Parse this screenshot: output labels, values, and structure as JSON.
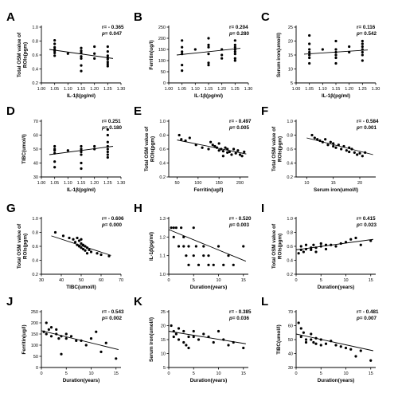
{
  "chart_data": [
    {
      "panel": "A",
      "type": "scatter",
      "xlabel": "IL-1β(pg/ml)",
      "ylabel": "Total OSM value of ROIs(pgm)",
      "xlim": [
        1.0,
        1.3
      ],
      "ylim": [
        0.2,
        1.0
      ],
      "xticks": [
        "1.00",
        "1.05",
        "1.10",
        "1.15",
        "1.20",
        "1.25",
        "1.30"
      ],
      "yticks": [
        "0.2",
        "0.4",
        "0.6",
        "0.8",
        "1.0"
      ],
      "r_text": "r= - 0.365",
      "p_text": "0.047",
      "x": [
        1.05,
        1.05,
        1.05,
        1.05,
        1.05,
        1.05,
        1.05,
        1.1,
        1.15,
        1.15,
        1.15,
        1.15,
        1.15,
        1.15,
        1.15,
        1.2,
        1.2,
        1.2,
        1.25,
        1.25,
        1.25,
        1.25,
        1.25,
        1.25,
        1.25,
        1.25
      ],
      "y": [
        0.81,
        0.76,
        0.71,
        0.68,
        0.66,
        0.63,
        0.59,
        0.62,
        0.7,
        0.66,
        0.63,
        0.58,
        0.55,
        0.45,
        0.37,
        0.72,
        0.62,
        0.55,
        0.72,
        0.65,
        0.59,
        0.56,
        0.54,
        0.5,
        0.47,
        0.44
      ],
      "fit": [
        [
          1.03,
          0.68
        ],
        [
          1.27,
          0.55
        ]
      ]
    },
    {
      "panel": "B",
      "type": "scatter",
      "xlabel": "IL-1β(pg/ml)",
      "ylabel": "Ferritin(ug/l)",
      "xlim": [
        1.0,
        1.3
      ],
      "ylim": [
        0,
        250
      ],
      "xticks": [
        "1.00",
        "1.05",
        "1.10",
        "1.15",
        "1.20",
        "1.25",
        "1.30"
      ],
      "yticks": [
        "0",
        "50",
        "100",
        "150",
        "200",
        "250"
      ],
      "r_text": "r= 0.204",
      "p_text": "0.280",
      "x": [
        1.05,
        1.05,
        1.05,
        1.05,
        1.05,
        1.05,
        1.1,
        1.15,
        1.15,
        1.15,
        1.15,
        1.15,
        1.15,
        1.2,
        1.2,
        1.2,
        1.25,
        1.25,
        1.25,
        1.25,
        1.25,
        1.25,
        1.25,
        1.25
      ],
      "y": [
        190,
        160,
        140,
        130,
        80,
        55,
        150,
        200,
        170,
        160,
        130,
        90,
        80,
        150,
        125,
        110,
        190,
        170,
        160,
        150,
        140,
        130,
        110,
        100
      ],
      "fit": [
        [
          1.03,
          125
        ],
        [
          1.27,
          155
        ]
      ]
    },
    {
      "panel": "C",
      "type": "scatter",
      "xlabel": "IL-1β(pg/ml)",
      "ylabel": "Serum iron(umol/l)",
      "xlim": [
        1.0,
        1.3
      ],
      "ylim": [
        5,
        25
      ],
      "xticks": [
        "1.00",
        "1.05",
        "1.10",
        "1.15",
        "1.20",
        "1.25",
        "1.30"
      ],
      "yticks": [
        "5",
        "10",
        "15",
        "20",
        "25"
      ],
      "r_text": "r= 0.116",
      "p_text": "0.542",
      "x": [
        1.05,
        1.05,
        1.05,
        1.05,
        1.05,
        1.05,
        1.05,
        1.1,
        1.15,
        1.15,
        1.15,
        1.15,
        1.15,
        1.15,
        1.2,
        1.2,
        1.25,
        1.25,
        1.25,
        1.25,
        1.25,
        1.25,
        1.25
      ],
      "y": [
        22,
        19,
        17,
        16,
        15,
        14,
        12,
        17,
        20,
        17,
        16,
        15,
        14,
        12,
        18,
        16,
        20,
        19,
        18,
        17,
        16,
        15,
        13
      ],
      "fit": [
        [
          1.03,
          15.3
        ],
        [
          1.27,
          16.8
        ]
      ]
    },
    {
      "panel": "D",
      "type": "scatter",
      "xlabel": "IL-1β(pg/ml)",
      "ylabel": "TIBC(umol/l)",
      "xlim": [
        1.0,
        1.3
      ],
      "ylim": [
        30,
        70
      ],
      "xticks": [
        "1.00",
        "1.05",
        "1.10",
        "1.15",
        "1.20",
        "1.25",
        "1.30"
      ],
      "yticks": [
        "30",
        "40",
        "50",
        "60",
        "70"
      ],
      "r_text": "r= 0.251",
      "p_text": "0.180",
      "x": [
        1.05,
        1.05,
        1.05,
        1.05,
        1.05,
        1.05,
        1.1,
        1.15,
        1.15,
        1.15,
        1.15,
        1.15,
        1.15,
        1.2,
        1.2,
        1.25,
        1.25,
        1.25,
        1.25,
        1.25,
        1.25,
        1.25,
        1.25
      ],
      "y": [
        52,
        50,
        49,
        47,
        41,
        37,
        49,
        52,
        50,
        48,
        46,
        40,
        36,
        52,
        50,
        64,
        60,
        55,
        52,
        50,
        48,
        46,
        44
      ],
      "fit": [
        [
          1.03,
          46
        ],
        [
          1.27,
          52
        ]
      ]
    },
    {
      "panel": "E",
      "type": "scatter",
      "xlabel": "Ferritin(ug/l)",
      "ylabel": "Total OSM value of ROIs(pgm)",
      "xlim": [
        30,
        220
      ],
      "ylim": [
        0.2,
        1.0
      ],
      "xticks": [
        "50",
        "100",
        "150",
        "200"
      ],
      "yticks": [
        "0.2",
        "0.4",
        "0.6",
        "0.8",
        "1.0"
      ],
      "r_text": "r= - 0.497",
      "p_text": "0.005",
      "x": [
        55,
        60,
        70,
        80,
        95,
        110,
        125,
        130,
        135,
        140,
        145,
        150,
        150,
        155,
        160,
        160,
        165,
        170,
        170,
        175,
        180,
        185,
        190,
        195,
        200,
        205,
        210
      ],
      "y": [
        0.8,
        0.74,
        0.72,
        0.76,
        0.66,
        0.62,
        0.6,
        0.7,
        0.66,
        0.64,
        0.62,
        0.68,
        0.58,
        0.6,
        0.57,
        0.5,
        0.62,
        0.55,
        0.6,
        0.56,
        0.52,
        0.6,
        0.54,
        0.58,
        0.52,
        0.5,
        0.56
      ],
      "fit": [
        [
          50,
          0.73
        ],
        [
          215,
          0.53
        ]
      ]
    },
    {
      "panel": "F",
      "type": "scatter",
      "xlabel": "Serum iron(umol/l)",
      "ylabel": "Total OSM value of ROIs(pgm)",
      "xlim": [
        8,
        23
      ],
      "ylim": [
        0.2,
        1.0
      ],
      "xticks": [
        "10",
        "15",
        "20"
      ],
      "yticks": [
        "0.2",
        "0.4",
        "0.6",
        "0.8",
        "1.0"
      ],
      "r_text": "r= - 0.584",
      "p_text": "0.001",
      "x": [
        11,
        11.5,
        12,
        12.5,
        13,
        13.5,
        14,
        14.5,
        15,
        15,
        15.5,
        16,
        16.5,
        17,
        17.5,
        18,
        18,
        18.5,
        19,
        19.5,
        20,
        20.5,
        21
      ],
      "y": [
        0.8,
        0.76,
        0.74,
        0.72,
        0.7,
        0.74,
        0.66,
        0.7,
        0.64,
        0.68,
        0.62,
        0.66,
        0.6,
        0.64,
        0.58,
        0.56,
        0.62,
        0.6,
        0.55,
        0.52,
        0.54,
        0.5,
        0.55
      ],
      "fit": [
        [
          10,
          0.76
        ],
        [
          22.5,
          0.52
        ]
      ]
    },
    {
      "panel": "G",
      "type": "scatter",
      "xlabel": "TIBC(umol/l)",
      "ylabel": "Total OSM value of ROIs(pgm)",
      "xlim": [
        30,
        70
      ],
      "ylim": [
        0.2,
        1.0
      ],
      "xticks": [
        "30",
        "40",
        "50",
        "60",
        "70"
      ],
      "yticks": [
        "0.2",
        "0.4",
        "0.6",
        "0.8",
        "1.0"
      ],
      "r_text": "r= - 0.606",
      "p_text": "0.000",
      "x": [
        37,
        41,
        44,
        46,
        47,
        48,
        48,
        49,
        49,
        50,
        50,
        50,
        51,
        51,
        52,
        52,
        53,
        53,
        54,
        55,
        58,
        60,
        64
      ],
      "y": [
        0.8,
        0.75,
        0.72,
        0.7,
        0.66,
        0.62,
        0.72,
        0.6,
        0.68,
        0.58,
        0.64,
        0.7,
        0.56,
        0.62,
        0.54,
        0.6,
        0.5,
        0.58,
        0.55,
        0.52,
        0.5,
        0.48,
        0.46
      ],
      "fit": [
        [
          35,
          0.75
        ],
        [
          65,
          0.47
        ]
      ]
    },
    {
      "panel": "H",
      "type": "scatter",
      "xlabel": "Duration(years)",
      "ylabel": "IL-1β(pg/ml)",
      "xlim": [
        0,
        16
      ],
      "ylim": [
        1.0,
        1.3
      ],
      "xticks": [
        "0",
        "5",
        "10",
        "15"
      ],
      "yticks": [
        "1.0",
        "1.1",
        "1.2",
        "1.3"
      ],
      "r_text": "r= - 0.520",
      "p_text": "0.003",
      "x": [
        0.5,
        1,
        1,
        1.5,
        2,
        2.5,
        3,
        3,
        3.5,
        4,
        4,
        5,
        5,
        5.5,
        6,
        7,
        7,
        8,
        8,
        9,
        10,
        11,
        12,
        13,
        15
      ],
      "y": [
        1.25,
        1.25,
        1.2,
        1.25,
        1.15,
        1.25,
        1.15,
        1.2,
        1.1,
        1.05,
        1.15,
        1.25,
        1.1,
        1.15,
        1.05,
        1.15,
        1.1,
        1.05,
        1.1,
        1.05,
        1.15,
        1.05,
        1.1,
        1.05,
        1.15
      ],
      "fit": [
        [
          0,
          1.24
        ],
        [
          15.5,
          1.07
        ]
      ]
    },
    {
      "panel": "I",
      "type": "scatter",
      "xlabel": "Duration(years)",
      "ylabel": "Total OSM value of ROIs(pgm)",
      "xlim": [
        0,
        16
      ],
      "ylim": [
        0.2,
        1.0
      ],
      "xticks": [
        "0",
        "5",
        "10",
        "15"
      ],
      "yticks": [
        "0.2",
        "0.4",
        "0.6",
        "0.8",
        "1.0"
      ],
      "r_text": "r= 0.415",
      "p_text": "0.023",
      "x": [
        0.5,
        1,
        1,
        1.5,
        2,
        2,
        3,
        3,
        3.5,
        4,
        4,
        5,
        5,
        6,
        6,
        7,
        8,
        9,
        10,
        11,
        12,
        13,
        15
      ],
      "y": [
        0.5,
        0.55,
        0.6,
        0.52,
        0.56,
        0.62,
        0.55,
        0.58,
        0.62,
        0.58,
        0.52,
        0.6,
        0.64,
        0.56,
        0.62,
        0.62,
        0.6,
        0.64,
        0.66,
        0.7,
        0.72,
        0.62,
        0.68
      ],
      "fit": [
        [
          0,
          0.55
        ],
        [
          15.5,
          0.7
        ]
      ]
    },
    {
      "panel": "J",
      "type": "scatter",
      "xlabel": "Duration(years)",
      "ylabel": "Ferritin(ug/l)",
      "xlim": [
        0,
        16
      ],
      "ylim": [
        0,
        250
      ],
      "xticks": [
        "0",
        "5",
        "10",
        "15"
      ],
      "yticks": [
        "0",
        "50",
        "100",
        "150",
        "200",
        "250"
      ],
      "r_text": "r= - 0.543",
      "p_text": "0.002",
      "x": [
        0.5,
        1,
        1,
        1.5,
        2,
        2,
        3,
        3,
        3.5,
        4,
        4,
        5,
        5,
        6,
        7,
        8,
        9,
        10,
        11,
        12,
        13,
        15
      ],
      "y": [
        160,
        200,
        150,
        170,
        180,
        140,
        150,
        170,
        130,
        140,
        60,
        150,
        130,
        140,
        120,
        120,
        100,
        130,
        160,
        70,
        110,
        40
      ],
      "fit": [
        [
          0,
          165
        ],
        [
          15.5,
          80
        ]
      ]
    },
    {
      "panel": "K",
      "type": "scatter",
      "xlabel": "Duration(years)",
      "ylabel": "Serum iron(umol/l)",
      "xlim": [
        0,
        16
      ],
      "ylim": [
        5,
        25
      ],
      "xticks": [
        "0",
        "5",
        "10",
        "15"
      ],
      "yticks": [
        "5",
        "10",
        "15",
        "20",
        "25"
      ],
      "r_text": "r= - 0.385",
      "p_text": "0.036",
      "x": [
        0.5,
        1,
        1,
        1.5,
        2,
        2,
        3,
        3,
        3.5,
        4,
        4,
        5,
        5,
        6,
        7,
        8,
        9,
        10,
        11,
        12,
        13,
        15
      ],
      "y": [
        20,
        18,
        16,
        17,
        19,
        15,
        18,
        14,
        13,
        16,
        12,
        18,
        16,
        15,
        17,
        16,
        14,
        18,
        15,
        13,
        14,
        12
      ],
      "fit": [
        [
          0,
          18
        ],
        [
          15.5,
          13.5
        ]
      ]
    },
    {
      "panel": "L",
      "type": "scatter",
      "xlabel": "Duration(years)",
      "ylabel": "TIBC(umol/l)",
      "xlim": [
        0,
        16
      ],
      "ylim": [
        30,
        70
      ],
      "xticks": [
        "0",
        "5",
        "10",
        "15"
      ],
      "yticks": [
        "30",
        "40",
        "50",
        "60",
        "70"
      ],
      "r_text": "r= - 0.481",
      "p_text": "0.007",
      "x": [
        0.5,
        1,
        1,
        1.5,
        2,
        2,
        3,
        3,
        3.5,
        4,
        4,
        5,
        5,
        6,
        7,
        8,
        9,
        10,
        11,
        12,
        13,
        15
      ],
      "y": [
        62,
        58,
        52,
        55,
        50,
        48,
        54,
        50,
        48,
        51,
        47,
        50,
        46,
        47,
        49,
        46,
        45,
        44,
        43,
        38,
        42,
        35
      ],
      "fit": [
        [
          0,
          54
        ],
        [
          15.5,
          42
        ]
      ]
    }
  ]
}
